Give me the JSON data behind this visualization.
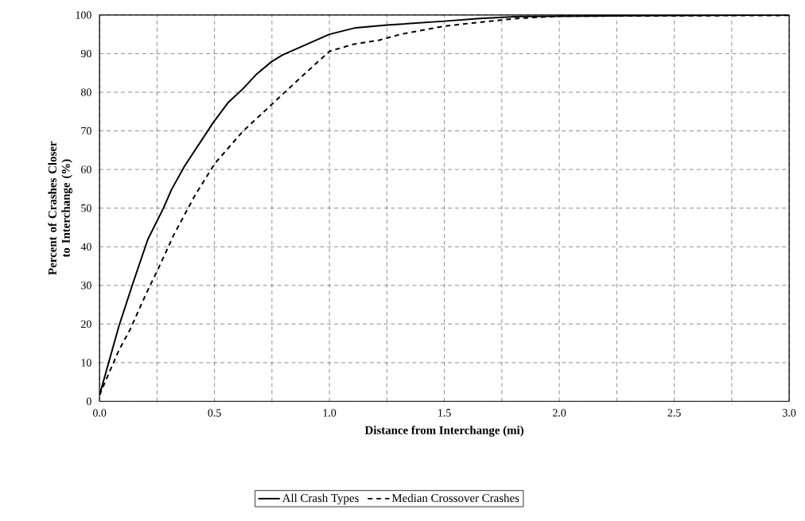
{
  "chart_data": {
    "type": "line",
    "xlabel": "Distance from Interchange (mi)",
    "ylabel": "Percent of Crashes Closer to Interchange (%)",
    "series": [
      {
        "name": "All Crash Types",
        "color": "#000000",
        "line_style": "solid",
        "x": [
          0,
          0.084,
          0.147,
          0.21,
          0.278,
          0.313,
          0.37,
          0.495,
          0.559,
          0.622,
          0.685,
          0.748,
          0.794,
          1.0,
          1.114,
          1.25,
          1.5,
          1.653,
          1.825,
          2.28,
          3.0
        ],
        "values": [
          1.6,
          19.4,
          30.9,
          41.9,
          50,
          54.8,
          60.9,
          72.2,
          77.3,
          80.8,
          84.8,
          87.9,
          89.6,
          95.0,
          96.7,
          97.4,
          98.4,
          99.1,
          99.6,
          99.8,
          100
        ]
      },
      {
        "name": "Median Crossover Crashes",
        "color": "#000000",
        "line_style": "dashed",
        "x": [
          0,
          0.049,
          0.084,
          0.134,
          0.203,
          0.256,
          0.324,
          0.416,
          0.502,
          0.622,
          0.748,
          0.88,
          1.0,
          1.103,
          1.217,
          1.309,
          1.498,
          1.619,
          1.814,
          1.904,
          2.0,
          3.0
        ],
        "values": [
          1.6,
          8.4,
          13.2,
          18.7,
          27.9,
          34.4,
          43.2,
          53.4,
          61.6,
          69.8,
          76.8,
          84.1,
          90.6,
          92.4,
          93.5,
          95.0,
          97.1,
          97.9,
          99.1,
          99.4,
          99.7,
          99.9
        ]
      }
    ],
    "xlim": [
      0,
      3.0
    ],
    "ylim": [
      0,
      100
    ],
    "xticks": [
      {
        "value": 0,
        "label": "0.0"
      },
      {
        "value": 0.25,
        "label": null
      },
      {
        "value": 0.5,
        "label": "0.5"
      },
      {
        "value": 0.75,
        "label": null
      },
      {
        "value": 1.0,
        "label": "1.0"
      },
      {
        "value": 1.25,
        "label": null
      },
      {
        "value": 1.5,
        "label": "1.5"
      },
      {
        "value": 1.75,
        "label": null
      },
      {
        "value": 2.0,
        "label": "2.0"
      },
      {
        "value": 2.25,
        "label": null
      },
      {
        "value": 2.5,
        "label": "2.5"
      },
      {
        "value": 2.75,
        "label": null
      },
      {
        "value": 3.0,
        "label": "3.0"
      }
    ],
    "yticks": [
      0,
      10,
      20,
      30,
      40,
      50,
      60,
      70,
      80,
      90,
      100
    ],
    "grid": true,
    "legend": "bottom",
    "marker": "none"
  }
}
